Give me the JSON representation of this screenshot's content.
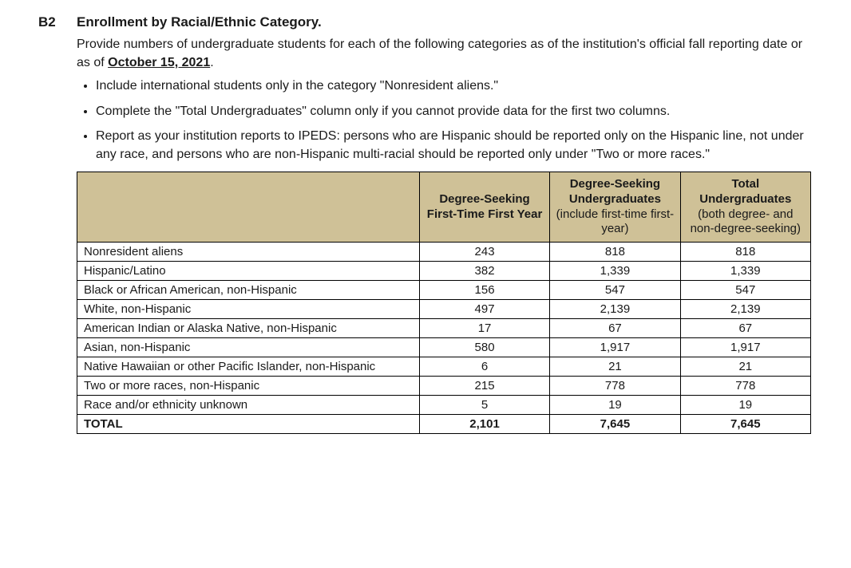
{
  "section": {
    "code": "B2",
    "title": "Enrollment by Racial/Ethnic Category.",
    "intro_before_date": "Provide numbers of undergraduate students for each of the following categories as of the institution's official fall reporting date or as of ",
    "date_bold": "October 15, 2021",
    "intro_after_date": ".",
    "bullets": [
      "Include international students only in the category \"Nonresident aliens.\"",
      "Complete the \"Total Undergraduates\" column only if you cannot provide data for the first two columns.",
      "Report as your institution reports to IPEDS: persons who are Hispanic should be reported only on the Hispanic line, not under any race, and persons who are non-Hispanic multi-racial should be reported only under \"Two or more races.\""
    ]
  },
  "table": {
    "header_bg": "#cfc197",
    "border_color": "#000000",
    "columns": [
      {
        "main": "",
        "sub": ""
      },
      {
        "main": "Degree-Seeking First-Time First Year",
        "sub": ""
      },
      {
        "main": "Degree-Seeking Undergraduates",
        "sub": "(include first-time first-year)"
      },
      {
        "main": "Total Undergraduates",
        "sub": "(both degree- and non-degree-seeking)"
      }
    ],
    "rows": [
      {
        "label": "Nonresident aliens",
        "c1": "243",
        "c2": "818",
        "c3": "818"
      },
      {
        "label": "Hispanic/Latino",
        "c1": "382",
        "c2": "1,339",
        "c3": "1,339"
      },
      {
        "label": "Black or African American, non-Hispanic",
        "c1": "156",
        "c2": "547",
        "c3": "547"
      },
      {
        "label": "White, non-Hispanic",
        "c1": "497",
        "c2": "2,139",
        "c3": "2,139"
      },
      {
        "label": "American Indian or Alaska Native, non-Hispanic",
        "c1": "17",
        "c2": "67",
        "c3": "67"
      },
      {
        "label": "Asian, non-Hispanic",
        "c1": "580",
        "c2": "1,917",
        "c3": "1,917"
      },
      {
        "label": "Native Hawaiian or other Pacific Islander, non-Hispanic",
        "c1": "6",
        "c2": "21",
        "c3": "21"
      },
      {
        "label": "Two or more races, non-Hispanic",
        "c1": "215",
        "c2": "778",
        "c3": "778"
      },
      {
        "label": "Race and/or ethnicity unknown",
        "c1": "5",
        "c2": "19",
        "c3": "19"
      }
    ],
    "total": {
      "label": "TOTAL",
      "c1": "2,101",
      "c2": "7,645",
      "c3": "7,645"
    }
  }
}
